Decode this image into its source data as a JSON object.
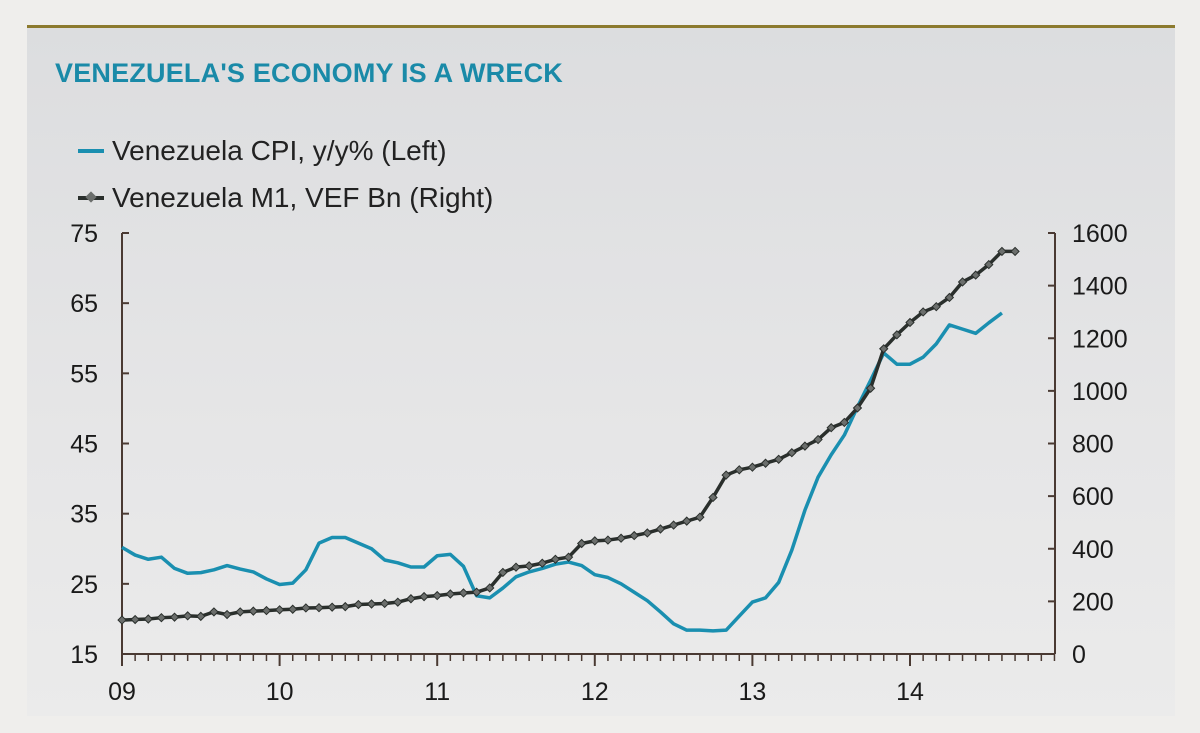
{
  "chart_data": {
    "type": "line",
    "title": "VENEZUELA'S ECONOMY IS A WRECK",
    "xlabel": "",
    "x_tick_labels": [
      "09",
      "10",
      "11",
      "12",
      "13",
      "14"
    ],
    "left_axis": {
      "ylim": [
        15,
        75
      ],
      "ticks": [
        "75",
        "65",
        "55",
        "45",
        "35",
        "25",
        "15"
      ]
    },
    "right_axis": {
      "ylim": [
        0,
        1600
      ],
      "ticks": [
        "1600",
        "1400",
        "1200",
        "1000",
        "800",
        "600",
        "400",
        "200",
        "0"
      ]
    },
    "grid": false,
    "legend_placement": "top-left",
    "series": [
      {
        "name": "Venezuela CPI, y/y% (Left)",
        "axis": "left",
        "color": "#1a8fb0",
        "start": "2009-01",
        "frequency": "monthly",
        "values": [
          30.2,
          29.1,
          28.5,
          28.8,
          27.2,
          26.5,
          26.6,
          27.0,
          27.6,
          27.1,
          26.7,
          25.7,
          24.9,
          25.1,
          27.0,
          30.8,
          31.6,
          31.6,
          30.8,
          30.0,
          28.4,
          28.0,
          27.4,
          27.4,
          29.0,
          29.2,
          27.5,
          23.3,
          23.0,
          24.4,
          26.0,
          26.7,
          27.2,
          27.8,
          28.1,
          27.6,
          26.3,
          25.9,
          25.0,
          23.8,
          22.6,
          21.0,
          19.3,
          18.4,
          18.4,
          18.3,
          18.4,
          20.4,
          22.4,
          23.0,
          25.2,
          29.8,
          35.5,
          40.2,
          43.4,
          46.2,
          50.2,
          54.0,
          57.9,
          56.3,
          56.3,
          57.3,
          59.2,
          61.9,
          61.3,
          60.7,
          62.2,
          63.6
        ]
      },
      {
        "name": "Venezuela M1, VEF Bn (Right)",
        "axis": "right",
        "color": "#2a2f2c",
        "start": "2009-01",
        "frequency": "monthly",
        "values": [
          129,
          131,
          133,
          138,
          140,
          145,
          143,
          160,
          150,
          160,
          163,
          165,
          168,
          170,
          175,
          176,
          178,
          180,
          188,
          190,
          192,
          197,
          210,
          218,
          222,
          228,
          232,
          235,
          251,
          310,
          330,
          335,
          345,
          360,
          368,
          420,
          430,
          433,
          440,
          450,
          460,
          475,
          490,
          505,
          520,
          595,
          680,
          700,
          710,
          725,
          740,
          765,
          790,
          815,
          860,
          880,
          935,
          1010,
          1160,
          1213,
          1260,
          1300,
          1320,
          1355,
          1414,
          1440,
          1480,
          1530,
          1530
        ]
      }
    ]
  }
}
